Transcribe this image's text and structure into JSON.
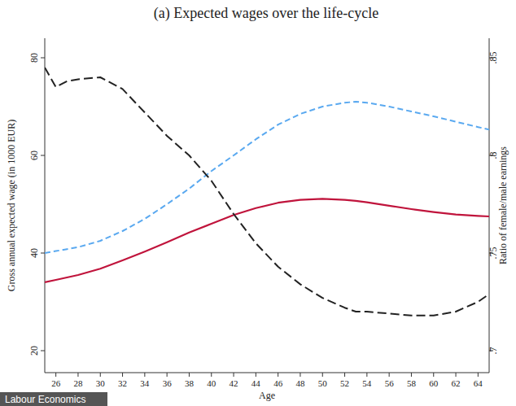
{
  "chart_data": {
    "type": "line",
    "title": "(a) Expected wages over the life-cycle",
    "x_label": "Age",
    "y_label": "Gross annual expected wage (in 1000 EUR)",
    "y2_label": "Ratio of female/male earnings",
    "annotations": [
      "Labour Economics"
    ],
    "x": [
      25,
      26,
      27,
      28,
      30,
      32,
      34,
      36,
      38,
      40,
      42,
      44,
      46,
      48,
      50,
      52,
      53,
      54,
      56,
      58,
      60,
      62,
      64,
      65
    ],
    "series": [
      {
        "color": "#5aa9f0",
        "line_style": "dashed",
        "axis": "y",
        "values": [
          40,
          40.4,
          40.8,
          41.2,
          42.5,
          44.5,
          47,
          50,
          53.2,
          56.8,
          60,
          63.3,
          66.3,
          68.5,
          70,
          70.8,
          71,
          70.8,
          70,
          69,
          68,
          66.9,
          65.8,
          65.3
        ]
      },
      {
        "color": "#c0143c",
        "line_style": "solid",
        "axis": "y",
        "values": [
          34,
          34.5,
          35,
          35.5,
          36.8,
          38.5,
          40.3,
          42.2,
          44.2,
          46,
          47.8,
          49.2,
          50.3,
          50.9,
          51.1,
          50.9,
          50.7,
          50.4,
          49.7,
          49,
          48.4,
          47.9,
          47.6,
          47.5
        ]
      },
      {
        "color": "#222222",
        "line_style": "longdash",
        "axis": "y2",
        "values": [
          0.845,
          0.835,
          0.838,
          0.839,
          0.84,
          0.834,
          0.822,
          0.81,
          0.8,
          0.787,
          0.77,
          0.755,
          0.743,
          0.734,
          0.727,
          0.722,
          0.72,
          0.72,
          0.719,
          0.718,
          0.718,
          0.72,
          0.725,
          0.729
        ]
      }
    ],
    "xlim": [
      25,
      65
    ],
    "xticks": [
      26,
      28,
      30,
      32,
      34,
      36,
      38,
      40,
      42,
      44,
      46,
      48,
      50,
      52,
      54,
      56,
      58,
      60,
      62,
      64
    ],
    "ylim": [
      15.5,
      84
    ],
    "yticks": [
      20,
      40,
      60,
      80
    ],
    "y2lim": [
      0.68875,
      0.86
    ],
    "y2ticks": [
      {
        "value": 0.7,
        "label": ".7"
      },
      {
        "value": 0.75,
        "label": ".75"
      },
      {
        "value": 0.8,
        "label": ".8"
      },
      {
        "value": 0.85,
        "label": ".85"
      }
    ],
    "grid": false
  }
}
